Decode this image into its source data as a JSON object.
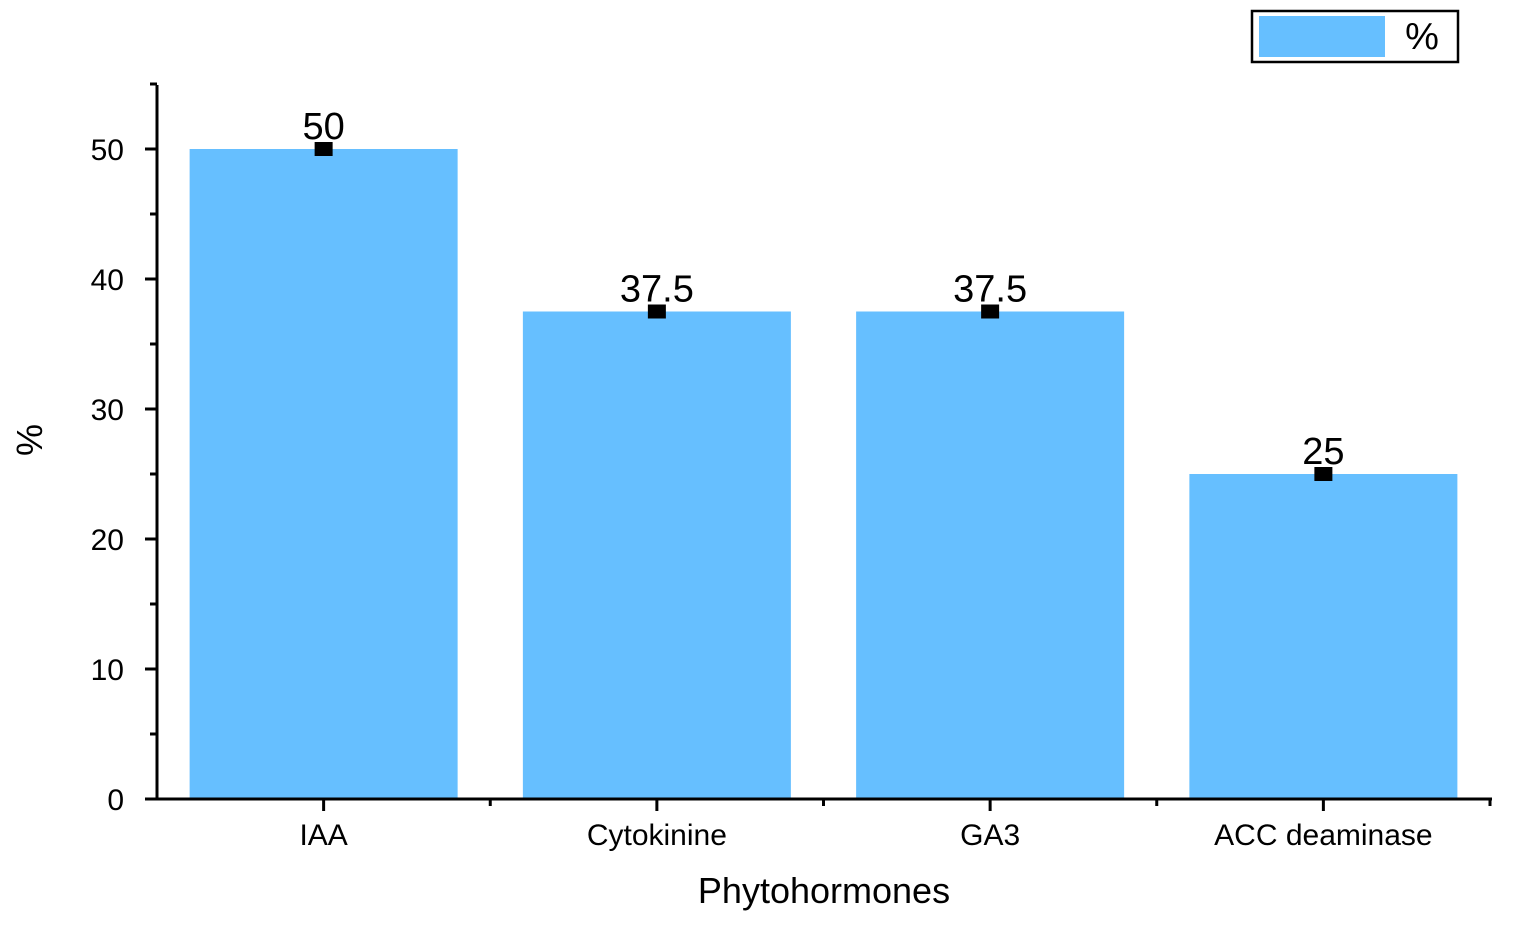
{
  "chart_data": {
    "type": "bar",
    "categories": [
      "IAA",
      "Cytokinine",
      "GA3",
      "ACC deaminase"
    ],
    "series": [
      {
        "name": "%",
        "values": [
          50,
          37.5,
          37.5,
          25
        ],
        "data_labels": [
          "50",
          "37.5",
          "37.5",
          "25"
        ],
        "color": "#66bfff"
      }
    ],
    "title": "",
    "xlabel": "Phytohormones",
    "ylabel": "%",
    "ylim": [
      0,
      55
    ],
    "yticks": [
      0,
      10,
      20,
      30,
      40,
      50
    ],
    "grid": false,
    "legend_position": "top-right",
    "marker_color": "#000000",
    "axis_color": "#000000"
  }
}
